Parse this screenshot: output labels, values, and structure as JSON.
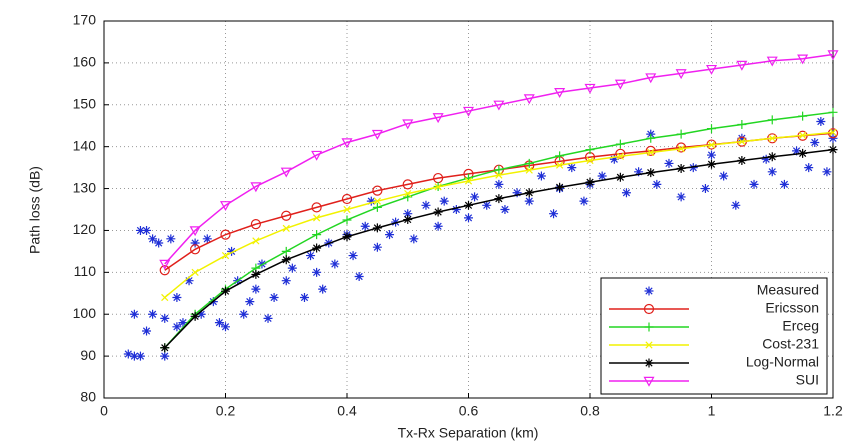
{
  "chart_data": {
    "type": "line",
    "xlabel": "Tx-Rx Separation (km)",
    "ylabel": "Path loss (dB)",
    "xlim": [
      0,
      1.2
    ],
    "ylim": [
      80,
      170
    ],
    "xticks": [
      0,
      0.2,
      0.4,
      0.6,
      0.8,
      1,
      1.2
    ],
    "yticks": [
      80,
      90,
      100,
      110,
      120,
      130,
      140,
      150,
      160,
      170
    ],
    "grid": true,
    "legend": "lower right",
    "x": [
      0.1,
      0.15,
      0.2,
      0.25,
      0.3,
      0.35,
      0.4,
      0.45,
      0.5,
      0.55,
      0.6,
      0.65,
      0.7,
      0.75,
      0.8,
      0.85,
      0.9,
      0.95,
      1,
      1.05,
      1.1,
      1.15,
      1.2
    ],
    "series": [
      {
        "name": "Measured",
        "color": "#1f2fd6",
        "marker": "star",
        "line": false,
        "x": [
          0.04,
          0.05,
          0.05,
          0.06,
          0.06,
          0.07,
          0.07,
          0.08,
          0.08,
          0.09,
          0.1,
          0.1,
          0.11,
          0.12,
          0.12,
          0.13,
          0.14,
          0.15,
          0.16,
          0.17,
          0.18,
          0.19,
          0.2,
          0.21,
          0.22,
          0.23,
          0.24,
          0.25,
          0.26,
          0.27,
          0.28,
          0.3,
          0.31,
          0.33,
          0.34,
          0.35,
          0.36,
          0.37,
          0.38,
          0.4,
          0.41,
          0.42,
          0.43,
          0.44,
          0.45,
          0.47,
          0.48,
          0.5,
          0.51,
          0.53,
          0.55,
          0.56,
          0.58,
          0.6,
          0.61,
          0.63,
          0.65,
          0.66,
          0.68,
          0.7,
          0.72,
          0.74,
          0.75,
          0.77,
          0.79,
          0.8,
          0.82,
          0.84,
          0.86,
          0.88,
          0.9,
          0.91,
          0.93,
          0.95,
          0.97,
          0.99,
          1,
          1.02,
          1.04,
          1.05,
          1.07,
          1.09,
          1.1,
          1.12,
          1.14,
          1.16,
          1.17,
          1.18,
          1.19,
          1.2
        ],
        "values": [
          90.5,
          90,
          100,
          90,
          120,
          120,
          96,
          100,
          118,
          117,
          90,
          99,
          118,
          97,
          104,
          98,
          108,
          117,
          100,
          118,
          103,
          98,
          97,
          115,
          108,
          100,
          103,
          106,
          112,
          99,
          104,
          108,
          111,
          104,
          114,
          110,
          106,
          117,
          112,
          119,
          114,
          109,
          121,
          127,
          116,
          119,
          122,
          124,
          118,
          126,
          121,
          127,
          125,
          123,
          128,
          126,
          131,
          125,
          129,
          127,
          133,
          124,
          130,
          135,
          127,
          131,
          133,
          137,
          129,
          134,
          143,
          131,
          136,
          128,
          135,
          130,
          138,
          133,
          126,
          142,
          131,
          137,
          134,
          131,
          139,
          135,
          141,
          146,
          134,
          142
        ]
      },
      {
        "name": "Ericsson",
        "color": "#e0201b",
        "marker": "circle",
        "line": true,
        "values": [
          110.5,
          115.5,
          119,
          121.5,
          123.5,
          125.5,
          127.5,
          129.5,
          131,
          132.5,
          133.5,
          134.5,
          135.5,
          136.5,
          137.5,
          138.3,
          139,
          139.8,
          140.5,
          141.2,
          142,
          142.6,
          143.2
        ]
      },
      {
        "name": "Erceg",
        "color": "#22d622",
        "marker": "plus",
        "line": true,
        "values": [
          92,
          100,
          106,
          111,
          115,
          119,
          122.5,
          125.5,
          128,
          130.5,
          132.5,
          134.5,
          136,
          137.8,
          139.3,
          140.6,
          142,
          143,
          144.3,
          145.3,
          146.4,
          147.3,
          148.2
        ]
      },
      {
        "name": "Cost-231",
        "color": "#f2f200",
        "marker": "cross",
        "line": true,
        "values": [
          104,
          110,
          114,
          117.5,
          120.5,
          123,
          125,
          127,
          128.8,
          130.4,
          131.8,
          133.2,
          134.4,
          135.6,
          136.7,
          137.7,
          138.6,
          139.5,
          140.4,
          141.2,
          142,
          142.7,
          143.4
        ]
      },
      {
        "name": "Log-Normal",
        "color": "#000000",
        "marker": "star",
        "line": true,
        "values": [
          92,
          99.5,
          105.5,
          109.5,
          113,
          115.8,
          118.5,
          120.6,
          122.6,
          124.4,
          126,
          127.6,
          129,
          130.3,
          131.5,
          132.7,
          133.8,
          134.8,
          135.8,
          136.7,
          137.6,
          138.4,
          139.3
        ]
      },
      {
        "name": "SUI",
        "color": "#f020f0",
        "marker": "triangle-down",
        "line": true,
        "values": [
          112,
          120,
          126,
          130.5,
          134,
          138,
          141,
          143,
          145.5,
          147,
          148.5,
          150,
          151.5,
          153,
          154,
          155,
          156.5,
          157.5,
          158.5,
          159.5,
          160.5,
          161,
          162
        ]
      }
    ]
  }
}
